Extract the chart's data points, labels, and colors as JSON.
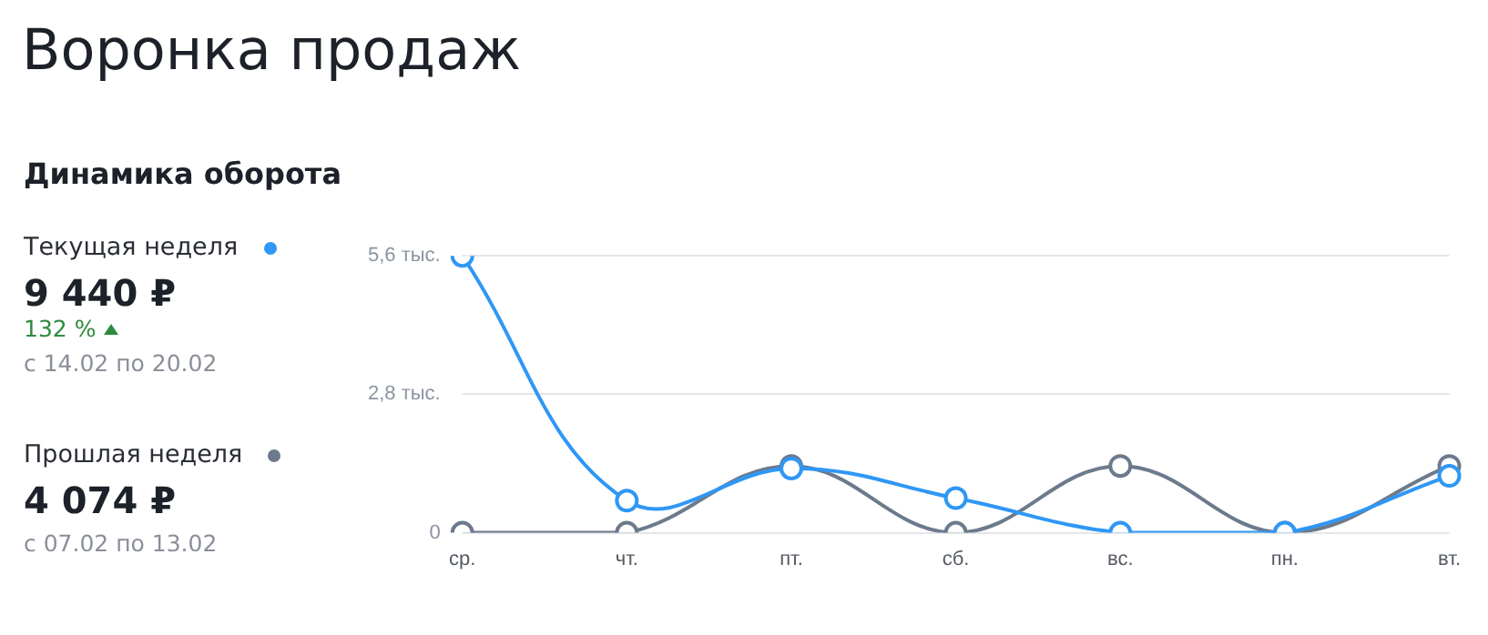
{
  "chart_data": {
    "type": "line",
    "title": "Воронка продаж",
    "subtitle": "Динамика оборота",
    "categories": [
      "ср.",
      "чт.",
      "пт.",
      "сб.",
      "вс.",
      "пн.",
      "вт."
    ],
    "series": [
      {
        "name": "Текущая неделя",
        "color": "#2f97f5",
        "values": [
          5.6,
          0.65,
          1.3,
          0.7,
          0,
          0,
          1.15
        ]
      },
      {
        "name": "Прошлая неделя",
        "color": "#6c7a8c",
        "values": [
          0,
          0,
          1.35,
          0,
          1.35,
          0,
          1.35
        ]
      }
    ],
    "annotations": [
      "9 440 ₽",
      "132 %",
      "с 14.02 по 20.02",
      "4 074 ₽",
      "с 07.02 по 13.02"
    ],
    "ylim": [
      0,
      5.6
    ],
    "yticks": [
      0,
      {
        "value": 2.8,
        "label": "2,8 тыс."
      },
      {
        "value": 5.6,
        "label": "5,6 тыс."
      }
    ],
    "grid": "y",
    "legend": "left",
    "marker": "circle",
    "line_style": "solid"
  }
}
